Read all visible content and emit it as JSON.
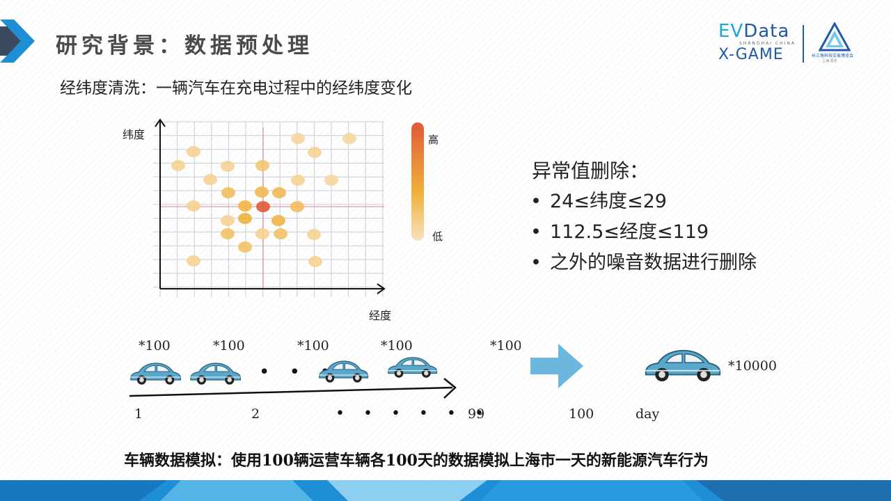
{
  "header": {
    "title": "研究背景：数据预处理",
    "subtitle": "经纬度清洗：一辆汽车在充电过程中的经纬度变化"
  },
  "logo": {
    "ev": "EV",
    "data": "Data",
    "shanghai": "SHANGHAI CHINA",
    "xgame": "X-GAME",
    "caption": "长三角科技交易博览会",
    "caption_sub": "上海·嘉定"
  },
  "chart": {
    "ylabel": "纬度",
    "xlabel": "经度",
    "legend_high": "高",
    "legend_low": "低",
    "colors": {
      "high": "#e05a3a",
      "mid": "#f0b23c",
      "low": "#f7e3c0",
      "grid": "#c8cbdc",
      "cross": "#e08080"
    }
  },
  "rules": {
    "title": "异常值删除：",
    "items": [
      "24≤纬度≤29",
      "112.5≤经度≤119",
      "之外的噪音数据进行删除"
    ]
  },
  "timeline": {
    "multipliers": [
      "*100",
      "*100",
      "*100",
      "*100",
      "*100"
    ],
    "ellipsis_cars": "• • •",
    "ticks": [
      "1",
      "2",
      "99",
      "100",
      "day"
    ],
    "ellipsis_ticks": "• • • • • •",
    "total": "*10000",
    "colors": {
      "car": "#5aa7cc",
      "arrow": "#6bb7dd"
    }
  },
  "footer": {
    "text": "车辆数据模拟：使用100辆运营车辆各100天的数据模拟上海市一天的新能源汽车行为"
  }
}
